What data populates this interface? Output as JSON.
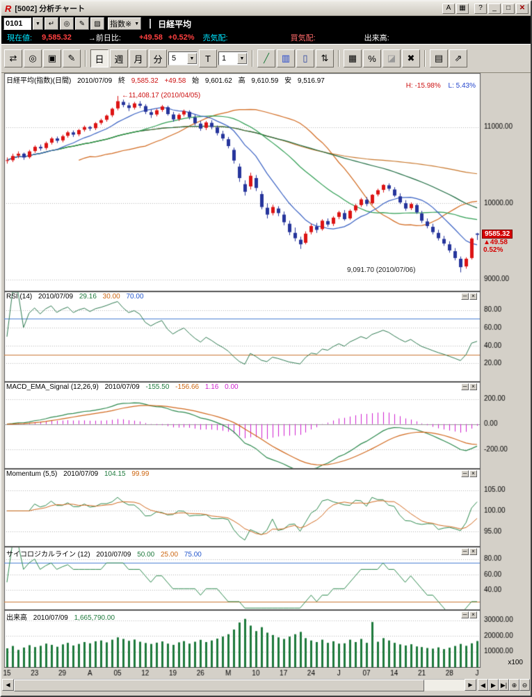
{
  "window": {
    "title": "[5002] 分析チャート",
    "logo": "R",
    "controls": {
      "font": "A",
      "layout": "▦",
      "help": "?",
      "minimize": "_",
      "maximize": "□",
      "close": "✕"
    }
  },
  "icons": {
    "dropdown": "▼"
  },
  "panel_controls": {
    "minimize": "─",
    "close": "×"
  },
  "symbol_bar": {
    "code": "0101",
    "tools": {
      "enter": "↵",
      "search": "◎",
      "edit": "✎",
      "list": "▨"
    },
    "category": "指数※",
    "name": "日経平均"
  },
  "quote_bar": {
    "current_label": "現在値:",
    "current": "9,585.32",
    "change_label": "→前日比:",
    "change": "+49.58",
    "change_pct": "+0.52%",
    "ask_label": "売気配:",
    "bid_label": "買気配:",
    "volume_label": "出来高:"
  },
  "toolbar": {
    "scroll": "⇄",
    "zoom": "◎",
    "copy": "▣",
    "edit": "✎",
    "period_day": "日",
    "period_week": "週",
    "period_month": "月",
    "period_minute": "分",
    "bars_value": "5",
    "t_button": "T",
    "interval_value": "1",
    "trendline": "╱",
    "bars_chart": "▥",
    "candle_chart": "▯",
    "updown": "⇅",
    "grid": "▦",
    "percent": "%",
    "eraser": "◪",
    "delete": "✖",
    "save": "▤",
    "export": "⇗"
  },
  "main_panel": {
    "title": "日経平均(指数)(日間)",
    "date": "2010/07/09",
    "close_label": "終",
    "close": "9,585.32",
    "change": "+49.58",
    "open_label": "始",
    "open": "9,601.62",
    "high_label": "高",
    "high": "9,610.59",
    "low_label": "安",
    "low": "9,516.97",
    "h_label": "H: -15.98%",
    "l_label": "L: 5.43%",
    "peak_annotation": "←11,408.17 (2010/04/05)",
    "trough_annotation": "9,091.70 (2010/07/06)",
    "price_badge": {
      "price": "9585.32",
      "change": "▲49.58",
      "pct": "0.52%"
    }
  },
  "panels": {
    "rsi": {
      "title": "RSI (14)",
      "date": "2010/07/09",
      "value": "29.16",
      "low_ref": "30.00",
      "high_ref": "70.00"
    },
    "macd": {
      "title": "MACD_EMA_Signal (12,26,9)",
      "date": "2010/07/09",
      "macd": "-155.50",
      "signal": "-156.66",
      "hist": "1.16",
      "zero": "0.00"
    },
    "momentum": {
      "title": "Momentum (5,5)",
      "date": "2010/07/09",
      "value": "104.15",
      "signal": "99.99"
    },
    "psych": {
      "title": "サイコロジカルライン (12)",
      "date": "2010/07/09",
      "value": "50.00",
      "low_ref": "25.00",
      "high_ref": "75.00"
    },
    "volume": {
      "title": "出来高",
      "date": "2010/07/09",
      "value": "1,665,790.00",
      "unit": "x100"
    }
  },
  "scrollbar": {
    "left": "◀",
    "right": "▶",
    "page_back": "◀",
    "page_fwd": "▶",
    "to_end": "▶|",
    "zoom_in": "⊕",
    "zoom_out": "⊖"
  },
  "chart_data": {
    "type": "candlestick",
    "title": "日経平均(指数)(日間)",
    "date": "2010/07/09",
    "xticks": {
      "indices": [
        0,
        5,
        10,
        15,
        20,
        25,
        30,
        35,
        40,
        45,
        50,
        55,
        60,
        65,
        70,
        75,
        80,
        85
      ],
      "labels": [
        "15",
        "23",
        "29",
        "A",
        "05",
        "12",
        "19",
        "26",
        "M",
        "10",
        "17",
        "24",
        "J",
        "07",
        "14",
        "21",
        "28",
        "J"
      ]
    },
    "panels": {
      "main": {
        "ylim": [
          8850,
          11700
        ],
        "ticks": [
          9000,
          10000,
          11000
        ]
      },
      "rsi": {
        "period": 14,
        "ylim": [
          0,
          100
        ],
        "ticks": [
          20,
          40,
          60,
          80
        ],
        "refs": [
          30,
          70
        ],
        "last": 29.16
      },
      "macd": {
        "params": [
          12,
          26,
          9
        ],
        "ylim": [
          -350,
          330
        ],
        "ticks": [
          -200,
          0,
          200
        ],
        "last": [
          -155.5,
          -156.66,
          1.16
        ]
      },
      "momentum": {
        "params": [
          5,
          5
        ],
        "ylim": [
          91.5,
          110
        ],
        "ticks": [
          95,
          100,
          105
        ],
        "last": [
          104.15,
          99.99
        ]
      },
      "psych": {
        "period": 12,
        "ylim": [
          15,
          95
        ],
        "ticks": [
          40,
          60,
          80
        ],
        "refs": [
          25,
          75
        ],
        "last": 50.0
      },
      "volume": {
        "ylim": [
          0,
          36000
        ],
        "ticks": [
          10000,
          20000,
          30000
        ],
        "unit": "x100",
        "last": 1665790.0
      }
    },
    "peak": {
      "value": 11408.17,
      "date": "2010/04/05"
    },
    "trough": {
      "value": 9091.7,
      "date": "2010/07/06"
    },
    "candles": [
      [
        10560,
        10600,
        10520,
        10564
      ],
      [
        10564,
        10650,
        10540,
        10620
      ],
      [
        10625,
        10680,
        10590,
        10650
      ],
      [
        10650,
        10665,
        10570,
        10600
      ],
      [
        10605,
        10700,
        10585,
        10680
      ],
      [
        10685,
        10760,
        10660,
        10740
      ],
      [
        10740,
        10770,
        10690,
        10720
      ],
      [
        10725,
        10810,
        10700,
        10790
      ],
      [
        10795,
        10870,
        10770,
        10850
      ],
      [
        10850,
        10875,
        10790,
        10820
      ],
      [
        10825,
        10900,
        10800,
        10880
      ],
      [
        10885,
        10950,
        10860,
        10930
      ],
      [
        10930,
        10955,
        10870,
        10900
      ],
      [
        10905,
        10975,
        10880,
        10960
      ],
      [
        10965,
        11020,
        10940,
        11000
      ],
      [
        11000,
        11015,
        10950,
        10980
      ],
      [
        10985,
        11065,
        10960,
        11050
      ],
      [
        11055,
        11110,
        11030,
        11090
      ],
      [
        11095,
        11165,
        11070,
        11150
      ],
      [
        11155,
        11255,
        11130,
        11240
      ],
      [
        11245,
        11408.17,
        11220,
        11339
      ],
      [
        11330,
        11360,
        11260,
        11290
      ],
      [
        11285,
        11320,
        11210,
        11250
      ],
      [
        11255,
        11330,
        11230,
        11310
      ],
      [
        11305,
        11340,
        11250,
        11280
      ],
      [
        11275,
        11300,
        11170,
        11200
      ],
      [
        11195,
        11230,
        11120,
        11160
      ],
      [
        11165,
        11240,
        11140,
        11220
      ],
      [
        11225,
        11290,
        11200,
        11270
      ],
      [
        11260,
        11280,
        11150,
        11170
      ],
      [
        11165,
        11200,
        11070,
        11100
      ],
      [
        11105,
        11180,
        11080,
        11160
      ],
      [
        11165,
        11230,
        11140,
        11210
      ],
      [
        11200,
        11220,
        11100,
        11130
      ],
      [
        11125,
        11160,
        11020,
        11050
      ],
      [
        11045,
        11080,
        10950,
        10980
      ],
      [
        10990,
        11080,
        10960,
        11060
      ],
      [
        11055,
        11090,
        10970,
        11000
      ],
      [
        10995,
        11020,
        10890,
        10920
      ],
      [
        10910,
        10950,
        10820,
        10850
      ],
      [
        10840,
        10870,
        10720,
        10750
      ],
      [
        10700,
        10730,
        10520,
        10560
      ],
      [
        10480,
        10520,
        10280,
        10330
      ],
      [
        10250,
        10300,
        10100,
        10150
      ],
      [
        10220,
        10400,
        10180,
        10360
      ],
      [
        10330,
        10370,
        10160,
        10200
      ],
      [
        10120,
        10160,
        9920,
        9950
      ],
      [
        9940,
        10000,
        9800,
        9850
      ],
      [
        9870,
        9980,
        9840,
        9950
      ],
      [
        9930,
        9960,
        9830,
        9870
      ],
      [
        9850,
        9890,
        9710,
        9750
      ],
      [
        9730,
        9770,
        9580,
        9620
      ],
      [
        9610,
        9680,
        9500,
        9540
      ],
      [
        9520,
        9560,
        9400,
        9460
      ],
      [
        9480,
        9630,
        9460,
        9600
      ],
      [
        9620,
        9730,
        9590,
        9700
      ],
      [
        9695,
        9740,
        9610,
        9650
      ],
      [
        9660,
        9790,
        9640,
        9770
      ],
      [
        9765,
        9800,
        9690,
        9720
      ],
      [
        9730,
        9830,
        9700,
        9810
      ],
      [
        9820,
        9900,
        9790,
        9880
      ],
      [
        9870,
        9910,
        9770,
        9790
      ],
      [
        9800,
        9920,
        9780,
        9900
      ],
      [
        9905,
        9990,
        9880,
        9970
      ],
      [
        9975,
        10070,
        9950,
        10050
      ],
      [
        10045,
        10080,
        9960,
        9990
      ],
      [
        10000,
        10120,
        9980,
        10110
      ],
      [
        10115,
        10190,
        10090,
        10170
      ],
      [
        10175,
        10250,
        10140,
        10240
      ],
      [
        10235,
        10260,
        10160,
        10190
      ],
      [
        10180,
        10210,
        10080,
        10100
      ],
      [
        10090,
        10130,
        9990,
        10010
      ],
      [
        10000,
        10040,
        9900,
        9930
      ],
      [
        9935,
        10010,
        9910,
        9990
      ],
      [
        9975,
        9995,
        9860,
        9880
      ],
      [
        9865,
        9900,
        9740,
        9770
      ],
      [
        9760,
        9800,
        9670,
        9700
      ],
      [
        9690,
        9730,
        9590,
        9620
      ],
      [
        9610,
        9650,
        9510,
        9540
      ],
      [
        9530,
        9570,
        9440,
        9470
      ],
      [
        9460,
        9500,
        9350,
        9380
      ],
      [
        9370,
        9410,
        9250,
        9280
      ],
      [
        9270,
        9300,
        9091.7,
        9160
      ],
      [
        9170,
        9290,
        9140,
        9270
      ],
      [
        9280,
        9550,
        9260,
        9535.74
      ],
      [
        9601.62,
        9610.59,
        9516.97,
        9585.32
      ]
    ],
    "volume_x100": [
      12000,
      13500,
      11000,
      12500,
      14000,
      12800,
      13600,
      15000,
      14200,
      13000,
      14500,
      15500,
      13800,
      14800,
      16000,
      15200,
      16500,
      17000,
      15800,
      17500,
      19000,
      18000,
      16800,
      17600,
      16200,
      15400,
      14800,
      15600,
      16400,
      15000,
      14200,
      15800,
      16600,
      15000,
      16200,
      17400,
      16000,
      17000,
      18200,
      19500,
      21000,
      24000,
      28500,
      30800,
      26500,
      23000,
      25500,
      22000,
      20500,
      19000,
      18000,
      19500,
      21000,
      22500,
      18500,
      17000,
      16000,
      17500,
      15500,
      16500,
      15000,
      15200,
      17500,
      16000,
      18000,
      15500,
      28800,
      16200,
      18500,
      17000,
      15500,
      14500,
      13800,
      14600,
      13200,
      12800,
      12200,
      11800,
      12600,
      11500,
      12400,
      13500,
      14800,
      13600,
      15200,
      16658
    ]
  }
}
